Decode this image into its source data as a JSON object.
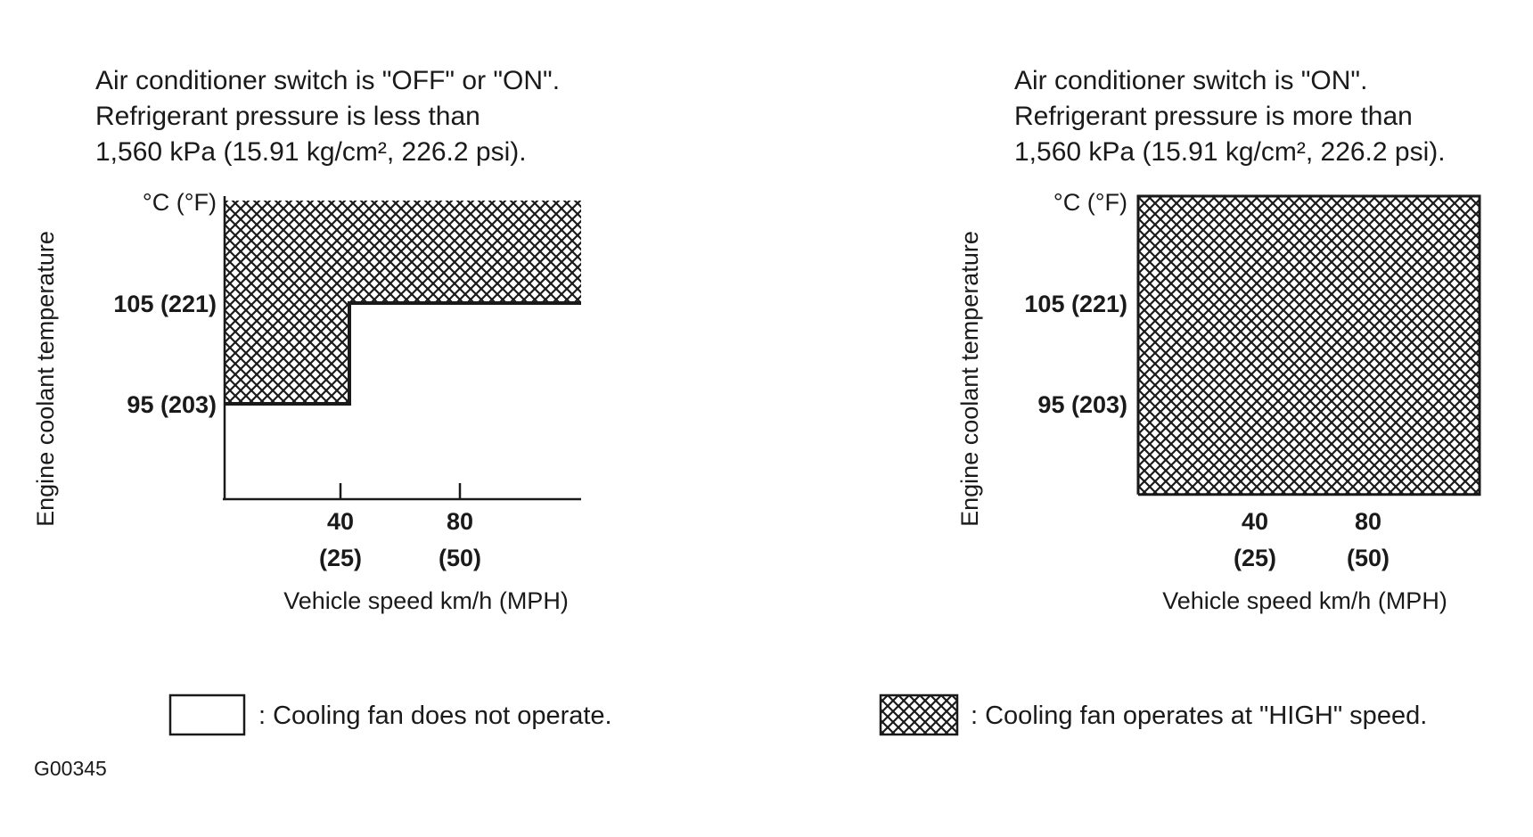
{
  "figure_id": "G00345",
  "colors": {
    "ink": "#1a1a1a",
    "background": "#ffffff"
  },
  "chart_data": [
    {
      "type": "area",
      "conditions": [
        "Air conditioner switch is \"OFF\" or \"ON\".",
        "Refrigerant pressure is less than",
        "1,560 kPa (15.91 kg/cm², 226.2 psi)."
      ],
      "ylabel": "Engine coolant temperature",
      "yunit": "°C (°F)",
      "xlabel": "Vehicle speed km/h (MPH)",
      "x_ticks": [
        {
          "value": "40",
          "sub": "(25)"
        },
        {
          "value": "80",
          "sub": "(50)"
        }
      ],
      "y_ticks": [
        {
          "value": 105,
          "label": "105 (221)"
        },
        {
          "value": 95,
          "label": "95 (203)"
        }
      ],
      "xlim": [
        0,
        120
      ],
      "ylim": [
        86,
        116
      ],
      "high_speed_region": [
        [
          0,
          95
        ],
        [
          42,
          95
        ],
        [
          42,
          105
        ],
        [
          120,
          105
        ],
        [
          120,
          116
        ],
        [
          0,
          116
        ]
      ]
    },
    {
      "type": "area",
      "conditions": [
        "Air conditioner switch is \"ON\".",
        "Refrigerant pressure is more than",
        "1,560 kPa (15.91 kg/cm², 226.2 psi)."
      ],
      "ylabel": "Engine coolant temperature",
      "yunit": "°C (°F)",
      "xlabel": "Vehicle speed km/h (MPH)",
      "x_ticks": [
        {
          "value": "40",
          "sub": "(25)"
        },
        {
          "value": "80",
          "sub": "(50)"
        }
      ],
      "y_ticks": [
        {
          "value": 105,
          "label": "105 (221)"
        },
        {
          "value": 95,
          "label": "95 (203)"
        }
      ],
      "xlim": [
        0,
        120
      ],
      "ylim": [
        86,
        116
      ],
      "high_speed_region": [
        [
          0,
          86
        ],
        [
          120,
          86
        ],
        [
          120,
          116
        ],
        [
          0,
          116
        ]
      ]
    }
  ],
  "legend": [
    {
      "swatch": "empty",
      "text": ": Cooling fan does not operate."
    },
    {
      "swatch": "crosshatch",
      "text": ": Cooling fan operates at \"HIGH\" speed."
    }
  ]
}
